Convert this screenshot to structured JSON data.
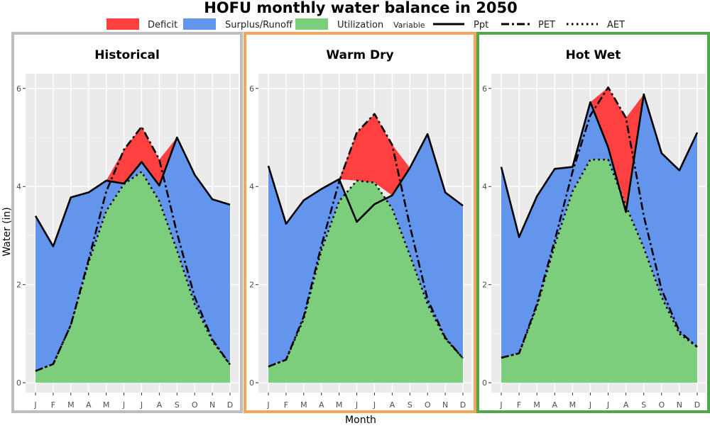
{
  "chart_data": {
    "type": "area",
    "title": "HOFU monthly water balance in 2050",
    "xlabel": "Month",
    "ylabel": "Water (in)",
    "categories": [
      "J",
      "F",
      "M",
      "A",
      "M",
      "J",
      "J",
      "A",
      "S",
      "O",
      "N",
      "D"
    ],
    "ylim": [
      -0.2,
      6.3
    ],
    "y_ticks": [
      0,
      2,
      4,
      6
    ],
    "grid": true,
    "legend": {
      "position": "top",
      "fill_entries": [
        {
          "label": "Deficit",
          "color": "#ff4040"
        },
        {
          "label": "Surplus/Runoff",
          "color": "#6495ed"
        },
        {
          "label": "Utilization",
          "color": "#7ccd7c"
        }
      ],
      "variable_title": "Variable",
      "line_entries": [
        {
          "label": "Ppt",
          "style": "solid"
        },
        {
          "label": "PET",
          "style": "dashdot"
        },
        {
          "label": "AET",
          "style": "dotted"
        }
      ]
    },
    "panels": [
      {
        "title": "Historical",
        "border_color": "#bebebe",
        "series": [
          {
            "name": "Ppt",
            "values": [
              3.4,
              2.78,
              3.78,
              3.88,
              4.12,
              4.06,
              4.5,
              4.02,
              5.0,
              4.24,
              3.74,
              3.63
            ]
          },
          {
            "name": "PET",
            "values": [
              0.24,
              0.38,
              1.18,
              2.5,
              3.9,
              4.75,
              5.22,
              4.55,
              3.05,
              1.75,
              0.88,
              0.37
            ]
          },
          {
            "name": "AET",
            "values": [
              0.24,
              0.38,
              1.18,
              2.45,
              3.5,
              4.05,
              4.3,
              3.7,
              2.7,
              1.6,
              0.85,
              0.37
            ]
          }
        ]
      },
      {
        "title": "Warm Dry",
        "border_color": "#f4a75a",
        "series": [
          {
            "name": "Ppt",
            "values": [
              4.42,
              3.24,
              3.72,
              3.95,
              4.15,
              3.28,
              3.64,
              3.82,
              4.38,
              5.07,
              3.88,
              3.61
            ]
          },
          {
            "name": "PET",
            "values": [
              0.33,
              0.47,
              1.35,
              2.8,
              4.1,
              5.1,
              5.48,
              4.85,
              3.2,
              1.7,
              0.92,
              0.5
            ]
          },
          {
            "name": "AET",
            "values": [
              0.33,
              0.47,
              1.3,
              2.7,
              3.7,
              4.12,
              4.08,
              3.55,
              2.6,
              1.6,
              0.9,
              0.5
            ]
          }
        ]
      },
      {
        "title": "Hot Wet",
        "border_color": "#4ea84a",
        "series": [
          {
            "name": "Ppt",
            "values": [
              4.4,
              2.97,
              3.8,
              4.36,
              4.4,
              5.72,
              4.8,
              3.48,
              5.88,
              4.68,
              4.33,
              5.1
            ]
          },
          {
            "name": "PET",
            "values": [
              0.51,
              0.6,
              1.6,
              2.9,
              4.3,
              5.45,
              6.02,
              5.4,
              3.4,
              1.9,
              1.05,
              0.73
            ]
          },
          {
            "name": "AET",
            "values": [
              0.51,
              0.6,
              1.55,
              2.8,
              3.9,
              4.55,
              4.55,
              3.6,
              2.75,
              1.75,
              1.0,
              0.73
            ]
          }
        ]
      }
    ]
  }
}
